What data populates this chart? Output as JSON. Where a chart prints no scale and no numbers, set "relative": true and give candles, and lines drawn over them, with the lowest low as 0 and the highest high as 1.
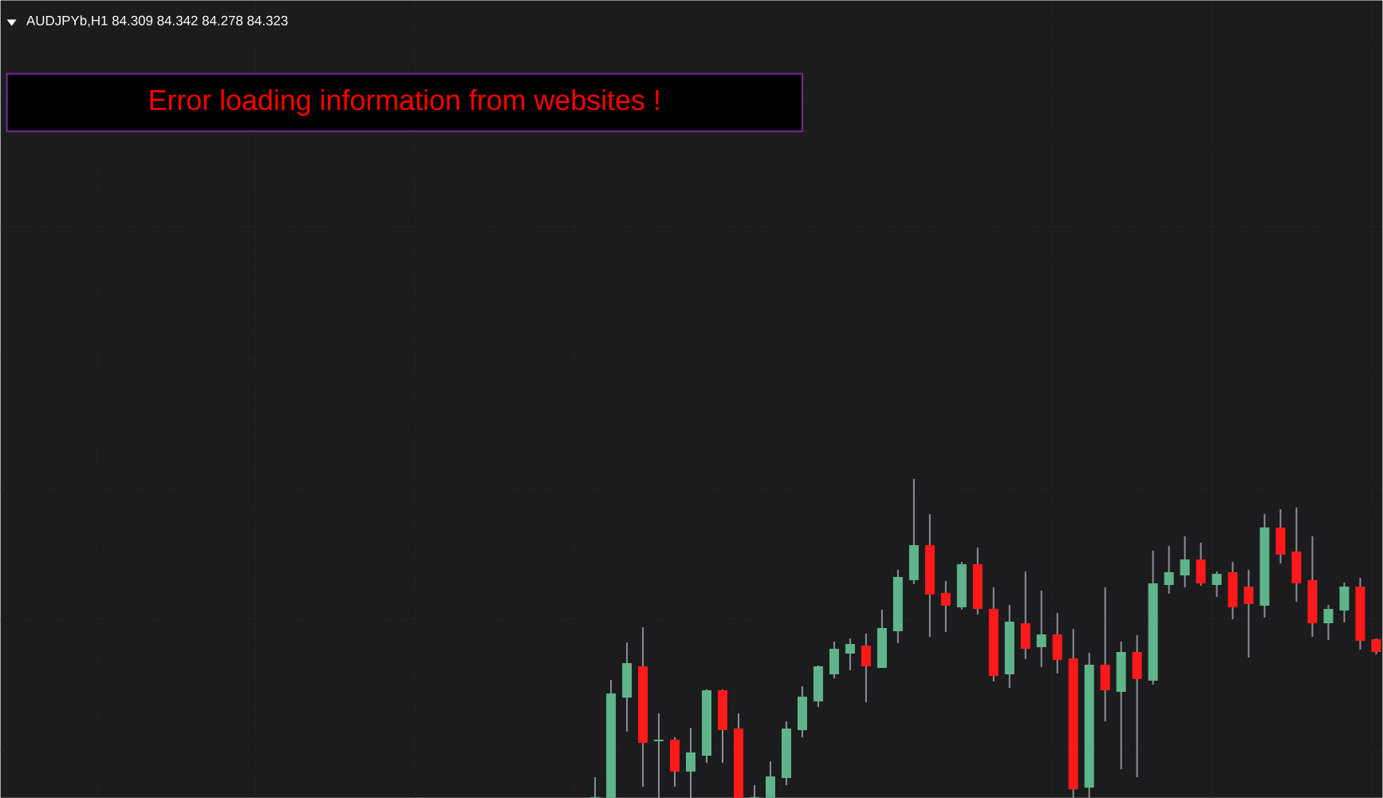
{
  "chart_data": {
    "type": "candlestick",
    "title": "AUDJPYb,H1  84.309 84.342 84.278 84.323",
    "annotations": [
      "Error loading information from websites !"
    ],
    "relative": true,
    "grid": true,
    "categories": [
      null,
      null,
      null,
      null,
      null,
      null,
      null,
      null,
      null,
      null,
      null,
      null,
      null,
      null,
      null,
      null,
      null,
      null,
      null,
      null,
      null,
      null,
      null,
      null,
      null,
      null,
      null,
      null,
      null,
      null,
      null,
      null,
      null,
      null,
      null,
      null,
      null,
      null,
      null,
      null,
      null,
      null,
      null,
      null,
      null,
      null,
      null,
      null,
      null,
      null
    ],
    "ohlc": [
      [
        0,
        0.065,
        0,
        0
      ],
      [
        0,
        0.37,
        0,
        0.325
      ],
      [
        0.317,
        0.487,
        0.208,
        0.42
      ],
      [
        0.41,
        0.535,
        0.035,
        0.175
      ],
      [
        0.18,
        0.265,
        0,
        0.18
      ],
      [
        0.18,
        0.19,
        0.035,
        0.085
      ],
      [
        0.085,
        0.22,
        0,
        0.14
      ],
      [
        0.135,
        0.34,
        0.11,
        0.335
      ],
      [
        0.335,
        0.34,
        0.11,
        0.215
      ],
      [
        0.215,
        0.265,
        0,
        0
      ],
      [
        0,
        0.04,
        0,
        0
      ],
      [
        0,
        0.115,
        0,
        0.065
      ],
      [
        0.065,
        0.24,
        0.04,
        0.215
      ],
      [
        0.215,
        0.35,
        0.19,
        0.315
      ],
      [
        0.305,
        0.415,
        0.285,
        0.41
      ],
      [
        0.39,
        0.49,
        0.375,
        0.465
      ],
      [
        0.455,
        0.5,
        0.4,
        0.48
      ],
      [
        0.475,
        0.515,
        0.3,
        0.415
      ],
      [
        0.41,
        0.59,
        0.41,
        0.53
      ],
      [
        0.525,
        0.715,
        0.485,
        0.69
      ],
      [
        0.685,
        1.0,
        0.67,
        0.79
      ],
      [
        0.79,
        0.89,
        0.505,
        0.64
      ],
      [
        0.64,
        0.68,
        0.52,
        0.605
      ],
      [
        0.6,
        0.74,
        0.59,
        0.73
      ],
      [
        0.73,
        0.785,
        0.575,
        0.595
      ],
      [
        0.59,
        0.66,
        0.365,
        0.385
      ],
      [
        0.39,
        0.605,
        0.345,
        0.55
      ],
      [
        0.545,
        0.71,
        0.435,
        0.47
      ],
      [
        0.475,
        0.65,
        0.41,
        0.51
      ],
      [
        0.51,
        0.58,
        0.39,
        0.435
      ],
      [
        0.435,
        0.53,
        0,
        0.03
      ],
      [
        0.035,
        0.455,
        0,
        0.415
      ],
      [
        0.415,
        0.66,
        0.24,
        0.34
      ],
      [
        0.335,
        0.49,
        0.09,
        0.455
      ],
      [
        0.455,
        0.51,
        0.065,
        0.375
      ],
      [
        0.37,
        0.775,
        0.355,
        0.67
      ],
      [
        0.67,
        0.79,
        0.64,
        0.705
      ],
      [
        0.7,
        0.82,
        0.66,
        0.745
      ],
      [
        0.745,
        0.8,
        0.665,
        0.675
      ],
      [
        0.67,
        0.71,
        0.63,
        0.7
      ],
      [
        0.705,
        0.74,
        0.56,
        0.6
      ],
      [
        0.66,
        0.715,
        0.44,
        0.61
      ],
      [
        0.605,
        0.89,
        0.565,
        0.845
      ],
      [
        0.845,
        0.905,
        0.735,
        0.765
      ],
      [
        0.77,
        0.91,
        0.615,
        0.675
      ],
      [
        0.68,
        0.82,
        0.505,
        0.55
      ],
      [
        0.55,
        0.605,
        0.495,
        0.59
      ],
      [
        0.59,
        0.675,
        0.55,
        0.66
      ],
      [
        0.66,
        0.69,
        0.465,
        0.495
      ],
      [
        0.495,
        0.5,
        0.45,
        0.46
      ]
    ]
  }
}
